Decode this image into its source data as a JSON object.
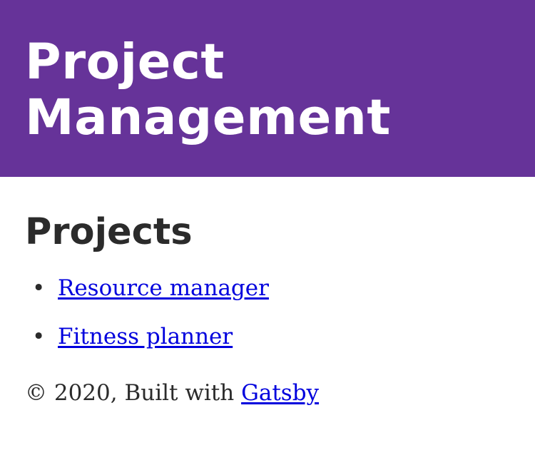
{
  "header": {
    "title": "Project Management"
  },
  "main": {
    "heading": "Projects",
    "projects": [
      {
        "label": "Resource manager"
      },
      {
        "label": "Fitness planner"
      }
    ]
  },
  "footer": {
    "prefix": "© 2020, Built with ",
    "link_label": "Gatsby"
  },
  "colors": {
    "header_background": "#663399",
    "header_text": "#ffffff",
    "link": "#0000dd",
    "body_text": "#2b2b2b"
  }
}
